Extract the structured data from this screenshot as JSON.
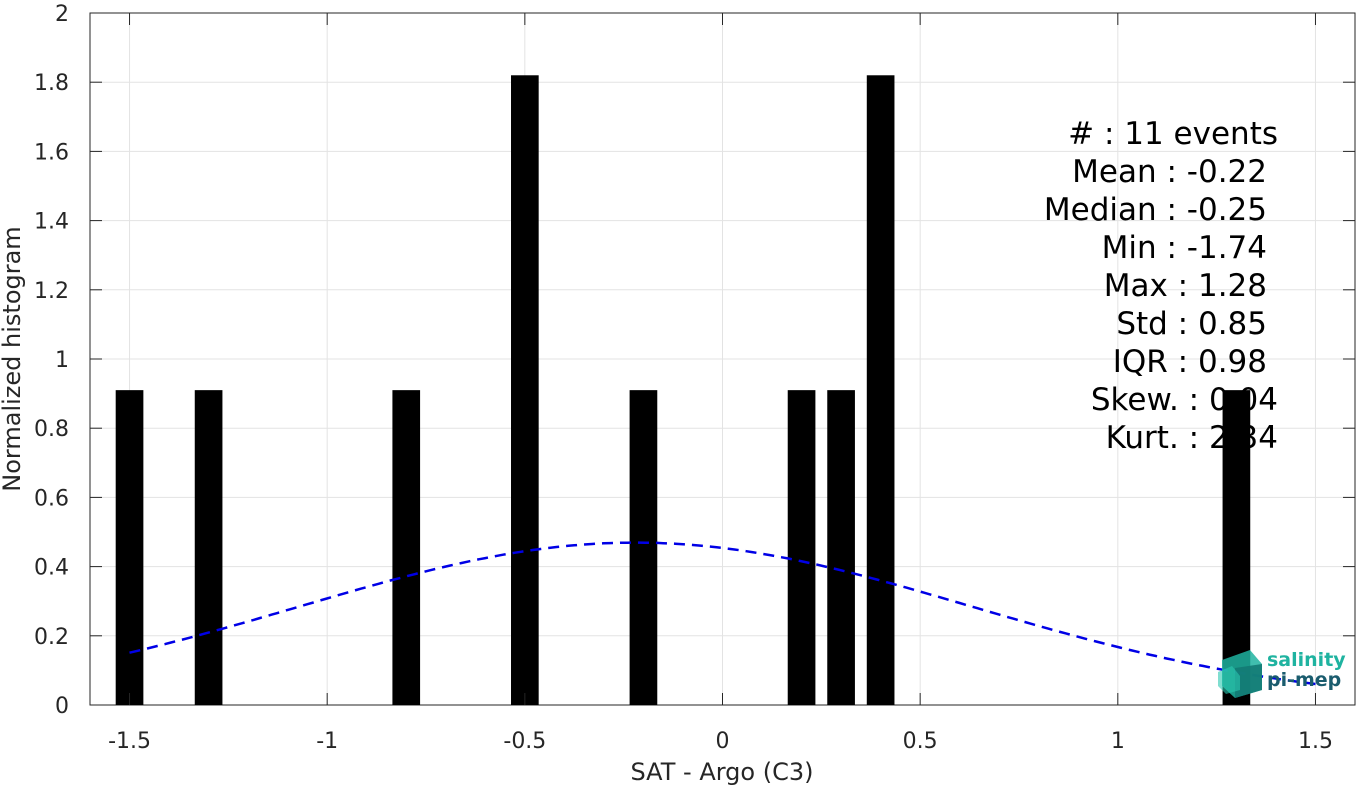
{
  "chart_data": {
    "type": "bar",
    "xlabel": "SAT - Argo (C3)",
    "ylabel": "Normalized histogram",
    "xlim": [
      -1.6,
      1.6
    ],
    "ylim": [
      0,
      2
    ],
    "xticks": [
      -1.5,
      -1,
      -0.5,
      0,
      0.5,
      1,
      1.5
    ],
    "xtick_labels": [
      "-1.5",
      "-1",
      "-0.5",
      "0",
      "0.5",
      "1",
      "1.5"
    ],
    "yticks": [
      0,
      0.2,
      0.4,
      0.6,
      0.8,
      1,
      1.2,
      1.4,
      1.6,
      1.8,
      2
    ],
    "ytick_labels": [
      "0",
      "0.2",
      "0.4",
      "0.6",
      "0.8",
      "1",
      "1.2",
      "1.4",
      "1.6",
      "1.8",
      "2"
    ],
    "grid": true,
    "bar_width": 0.07,
    "bars": [
      {
        "x": -1.5,
        "value": 0.91
      },
      {
        "x": -1.3,
        "value": 0.91
      },
      {
        "x": -0.8,
        "value": 0.91
      },
      {
        "x": -0.5,
        "value": 1.82
      },
      {
        "x": -0.2,
        "value": 0.91
      },
      {
        "x": 0.2,
        "value": 0.91
      },
      {
        "x": 0.3,
        "value": 0.91
      },
      {
        "x": 0.4,
        "value": 1.82
      },
      {
        "x": 1.3,
        "value": 0.91
      }
    ],
    "bar_color": "#000000",
    "fit_curve": {
      "style": "dashed",
      "color": "#0000e6",
      "mean": -0.22,
      "std": 0.85,
      "x_range": [
        -1.5,
        1.5
      ]
    },
    "stats": {
      "count": "#  : 11 events",
      "mean": "Mean : -0.22",
      "median": "Median : -0.25",
      "min": "Min : -1.74",
      "max": "Max : 1.28",
      "std": "Std : 0.85",
      "iqr": "IQR : 0.98",
      "skew": "Skew. : 0.04",
      "kurt": "Kurt. : 2.34"
    }
  },
  "logo": {
    "line1": "salinity",
    "line2": "pi-mep"
  }
}
